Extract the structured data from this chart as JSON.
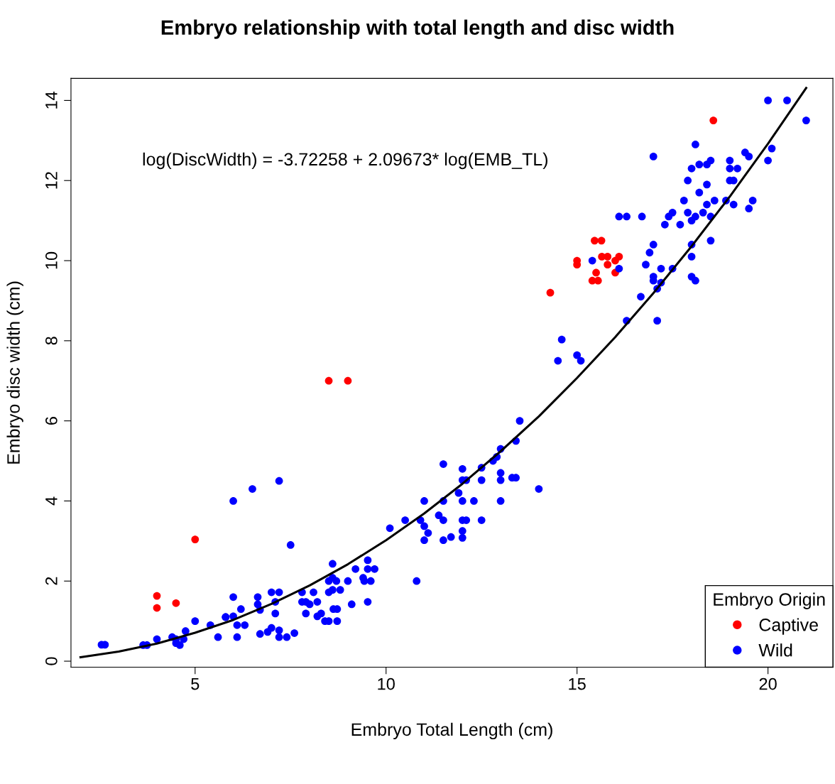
{
  "chart_data": {
    "type": "scatter",
    "title": "Embryo relationship with total length and disc width",
    "xlabel": "Embryo Total Length (cm)",
    "ylabel": "Embryo disc width (cm)",
    "legend_title": "Embryo Origin",
    "legend": "bottom right",
    "grid": false,
    "marker": "circle",
    "xlim": [
      1.75,
      21.7
    ],
    "ylim": [
      -0.15,
      14.55
    ],
    "xticks": [
      5,
      10,
      15,
      20
    ],
    "yticks": [
      0,
      2,
      4,
      6,
      8,
      10,
      12,
      14
    ],
    "annotations": [
      "log(DiscWidth) = -3.72258 + 2.09673* log(EMB_TL)"
    ],
    "series": [
      {
        "name": "Captive",
        "color": "#ff0000",
        "x": [
          4.0,
          4.0,
          4.5,
          5.0,
          8.5,
          9.0,
          14.3,
          15.0,
          15.0,
          15.46,
          15.64,
          15.65,
          15.8,
          15.8,
          15.5,
          15.4,
          15.55,
          16.0,
          16.1,
          16.0,
          18.57
        ],
        "values": [
          1.63,
          1.33,
          1.45,
          3.04,
          7.0,
          7.0,
          9.2,
          10.0,
          9.9,
          10.5,
          10.5,
          10.1,
          10.1,
          9.9,
          9.7,
          9.5,
          9.5,
          10.0,
          10.1,
          9.7,
          13.5
        ]
      },
      {
        "name": "Wild",
        "color": "#0000ff",
        "x": [
          2.55,
          2.64,
          3.64,
          3.74,
          4.0,
          4.4,
          4.5,
          4.6,
          4.7,
          4.75,
          4.5,
          5.0,
          5.4,
          5.6,
          5.8,
          6.0,
          6.0,
          6.1,
          6.1,
          5.8,
          6.2,
          6.3,
          6.64,
          6.64,
          6.7,
          6.7,
          6.9,
          7.0,
          7.2,
          7.2,
          7.4,
          7.6,
          7.0,
          7.2,
          7.1,
          7.1,
          7.8,
          7.8,
          7.9,
          7.9,
          8.1,
          8.2,
          8.2,
          8.4,
          6.0,
          6.5,
          7.2,
          7.5,
          8.0,
          8.3,
          8.5,
          8.5,
          8.6,
          8.6,
          8.7,
          8.6,
          8.5,
          8.8,
          8.62,
          8.72,
          8.72,
          9.0,
          9.1,
          9.2,
          9.4,
          9.43,
          9.52,
          9.52,
          9.52,
          9.6,
          9.7,
          10.8,
          10.1,
          10.5,
          11.0,
          10.9,
          11.0,
          11.1,
          11.0,
          11.5,
          11.38,
          11.5,
          11.7,
          11.5,
          11.5,
          11.9,
          12.0,
          12.0,
          12.1,
          12.0,
          12.0,
          12.1,
          12.0,
          12.0,
          12.3,
          12.5,
          12.5,
          12.5,
          12.8,
          13.0,
          13.0,
          13.0,
          13.3,
          13.4,
          14.0,
          13.5,
          13.4,
          13.0,
          12.9,
          14.6,
          14.5,
          15.0,
          15.1,
          15.4,
          16.1,
          16.3,
          16.67,
          16.8,
          16.9,
          17.0,
          17.0,
          17.0,
          17.1,
          17.1,
          17.2,
          17.2,
          17.5,
          18.0,
          18.0,
          18.0,
          18.1,
          18.5,
          20.0,
          20.5,
          21.0,
          18.1,
          17.0,
          20.1,
          20.0,
          19.4,
          19.5,
          19.0,
          19.0,
          19.2,
          19.0,
          19.1,
          18.0,
          18.2,
          18.4,
          18.5,
          17.9,
          18.4,
          18.2,
          17.8,
          18.4,
          18.6,
          18.9,
          19.1,
          19.6,
          19.5,
          17.9,
          18.1,
          18.3,
          18.5,
          18.0,
          17.5,
          17.4,
          17.3,
          17.7,
          16.7,
          16.3,
          16.1
        ],
        "values": [
          0.41,
          0.41,
          0.4,
          0.4,
          0.55,
          0.6,
          0.45,
          0.4,
          0.55,
          0.75,
          0.55,
          1.0,
          0.9,
          0.6,
          1.1,
          1.6,
          1.12,
          0.9,
          0.6,
          1.1,
          1.3,
          0.9,
          1.6,
          1.42,
          1.28,
          0.68,
          0.73,
          0.83,
          0.77,
          0.6,
          0.6,
          0.7,
          1.72,
          1.72,
          1.48,
          1.19,
          1.72,
          1.48,
          1.19,
          1.48,
          1.72,
          1.48,
          1.12,
          1.0,
          4.0,
          4.3,
          4.5,
          2.9,
          1.42,
          1.19,
          1.0,
          2.0,
          2.43,
          2.08,
          2.0,
          1.78,
          1.72,
          1.78,
          1.3,
          1.3,
          1.0,
          2.0,
          1.42,
          2.3,
          2.08,
          2.0,
          2.52,
          2.3,
          1.48,
          2.0,
          2.3,
          2.0,
          3.32,
          3.52,
          4.0,
          3.52,
          3.37,
          3.2,
          3.02,
          4.0,
          3.64,
          3.52,
          3.1,
          3.02,
          4.92,
          4.2,
          4.8,
          4.52,
          4.52,
          4.0,
          3.52,
          3.52,
          3.25,
          3.08,
          4.0,
          4.52,
          4.83,
          3.52,
          5.0,
          4.7,
          4.52,
          4.0,
          4.58,
          4.58,
          4.3,
          6.0,
          5.5,
          5.3,
          5.1,
          8.03,
          7.5,
          7.64,
          7.5,
          10.0,
          9.8,
          8.5,
          9.1,
          9.9,
          10.2,
          10.4,
          9.6,
          9.5,
          8.5,
          9.3,
          9.45,
          9.8,
          9.8,
          10.4,
          10.1,
          9.6,
          9.5,
          10.5,
          14.0,
          14.0,
          13.5,
          12.9,
          12.6,
          12.8,
          12.5,
          12.7,
          12.6,
          12.5,
          12.3,
          12.3,
          12.0,
          12.0,
          12.3,
          12.4,
          12.4,
          12.5,
          12.0,
          11.9,
          11.7,
          11.5,
          11.4,
          11.5,
          11.5,
          11.4,
          11.5,
          11.3,
          11.2,
          11.1,
          11.2,
          11.1,
          11.0,
          11.2,
          11.1,
          10.9,
          10.9,
          11.1,
          11.1,
          11.1
        ]
      },
      {
        "type": "line",
        "marker": "none",
        "color": "#000000",
        "x": [
          2,
          3,
          4,
          5,
          6,
          7,
          8,
          9,
          10,
          11,
          12,
          13,
          14,
          15,
          16,
          17,
          18,
          19,
          20,
          21
        ],
        "values": [
          0.1,
          0.24,
          0.44,
          0.71,
          1.03,
          1.43,
          1.89,
          2.42,
          3.02,
          3.69,
          4.43,
          5.24,
          6.11,
          7.07,
          8.09,
          9.19,
          10.36,
          11.6,
          12.92,
          14.31
        ]
      }
    ]
  }
}
